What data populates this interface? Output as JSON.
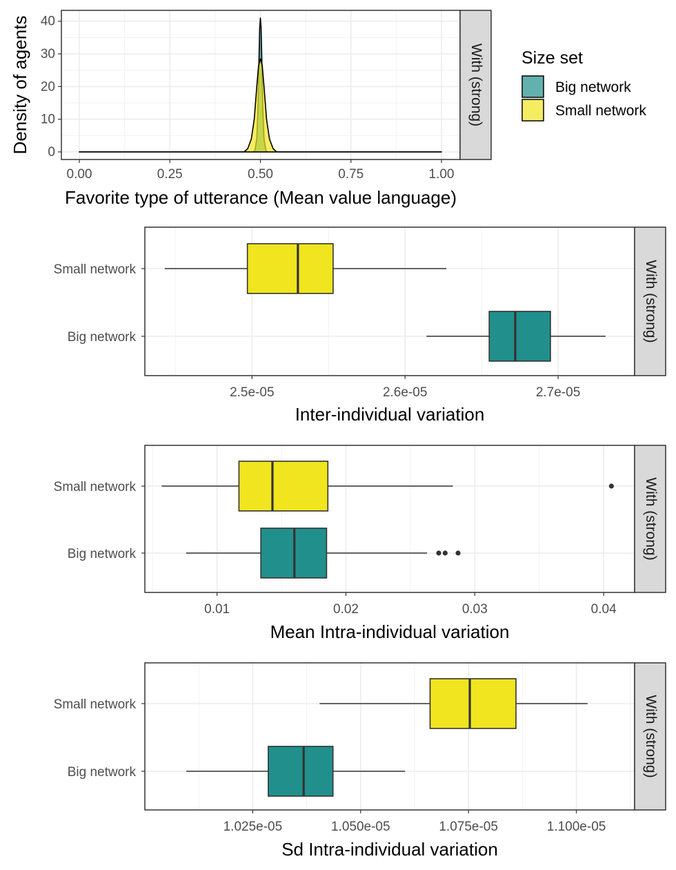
{
  "legend": {
    "title": "Size set",
    "items": [
      {
        "label": "Big network",
        "color": "#21908C"
      },
      {
        "label": "Small network",
        "color": "#F0E51F"
      }
    ]
  },
  "chart_data": [
    {
      "type": "area",
      "facet_label": "With (strong)",
      "xlabel": "Favorite type of utterance (Mean value language)",
      "ylabel": "Density of agents",
      "xlim": [
        0,
        1
      ],
      "ylim": [
        0,
        41
      ],
      "x_ticks": [
        "0.00",
        "0.25",
        "0.50",
        "0.75",
        "1.00"
      ],
      "x_tick_values": [
        0,
        0.25,
        0.5,
        0.75,
        1
      ],
      "y_ticks": [
        "0",
        "10",
        "20",
        "30",
        "40"
      ],
      "y_tick_values": [
        0,
        10,
        20,
        30,
        40
      ],
      "grid": true,
      "series": [
        {
          "name": "Big network",
          "color": "#21908C",
          "fill_opacity": 0.7,
          "x": [
            0,
            0.48,
            0.485,
            0.49,
            0.493,
            0.496,
            0.498,
            0.5,
            0.502,
            0.504,
            0.507,
            0.51,
            0.515,
            0.52,
            1
          ],
          "y": [
            0,
            0,
            0.5,
            4,
            12,
            28,
            38,
            41,
            38,
            28,
            12,
            4,
            0.5,
            0,
            0
          ]
        },
        {
          "name": "Small network",
          "color": "#F0E51F",
          "fill_opacity": 0.7,
          "x": [
            0,
            0.455,
            0.465,
            0.475,
            0.483,
            0.49,
            0.495,
            0.5,
            0.505,
            0.51,
            0.517,
            0.525,
            0.535,
            0.545,
            1
          ],
          "y": [
            0,
            0,
            1,
            4,
            10,
            20,
            26.5,
            28.5,
            26.5,
            20,
            10,
            4,
            1,
            0,
            0
          ]
        }
      ]
    },
    {
      "type": "boxplot",
      "facet_label": "With (strong)",
      "xlabel": "Inter-individual variation",
      "categories": [
        "Small network",
        "Big network"
      ],
      "xlim": [
        2.43e-05,
        2.75e-05
      ],
      "x_ticks": [
        "2.5e-05",
        "2.6e-05",
        "2.7e-05"
      ],
      "x_tick_values": [
        2.5e-05,
        2.6e-05,
        2.7e-05
      ],
      "grid": true,
      "boxes": [
        {
          "category": "Small network",
          "color": "#F0E51F",
          "min": 2.443e-05,
          "q1": 2.497e-05,
          "median": 2.53e-05,
          "q3": 2.553e-05,
          "max": 2.627e-05,
          "outliers": []
        },
        {
          "category": "Big network",
          "color": "#21908C",
          "min": 2.614e-05,
          "q1": 2.655e-05,
          "median": 2.672e-05,
          "q3": 2.695e-05,
          "max": 2.731e-05,
          "outliers": []
        }
      ]
    },
    {
      "type": "boxplot",
      "facet_label": "With (strong)",
      "xlabel": "Mean Intra-individual variation",
      "categories": [
        "Small network",
        "Big network"
      ],
      "xlim": [
        0.0044,
        0.0424
      ],
      "x_ticks": [
        "0.01",
        "0.02",
        "0.03",
        "0.04"
      ],
      "x_tick_values": [
        0.01,
        0.02,
        0.03,
        0.04
      ],
      "grid": true,
      "boxes": [
        {
          "category": "Small network",
          "color": "#F0E51F",
          "min": 0.0057,
          "q1": 0.0117,
          "median": 0.0143,
          "q3": 0.0186,
          "max": 0.0283,
          "outliers": [
            0.0406
          ]
        },
        {
          "category": "Big network",
          "color": "#21908C",
          "min": 0.0076,
          "q1": 0.0134,
          "median": 0.016,
          "q3": 0.0185,
          "max": 0.0263,
          "outliers": [
            0.0272,
            0.0277,
            0.0287
          ]
        }
      ]
    },
    {
      "type": "boxplot",
      "facet_label": "With (strong)",
      "xlabel": "Sd Intra-individual variation",
      "categories": [
        "Small network",
        "Big network"
      ],
      "xlim": [
        1e-05,
        1.1135e-05
      ],
      "x_ticks": [
        "1.025e-05",
        "1.050e-05",
        "1.075e-05",
        "1.100e-05"
      ],
      "x_tick_values": [
        1.025e-05,
        1.05e-05,
        1.075e-05,
        1.1e-05
      ],
      "grid": true,
      "boxes": [
        {
          "category": "Small network",
          "color": "#F0E51F",
          "min": 1.0405e-05,
          "q1": 1.0661e-05,
          "median": 1.0753e-05,
          "q3": 1.086e-05,
          "max": 1.1026e-05,
          "outliers": []
        },
        {
          "category": "Big network",
          "color": "#21908C",
          "min": 1.0096e-05,
          "q1": 1.0286e-05,
          "median": 1.0368e-05,
          "q3": 1.0436e-05,
          "max": 1.0603e-05,
          "outliers": []
        }
      ]
    }
  ]
}
